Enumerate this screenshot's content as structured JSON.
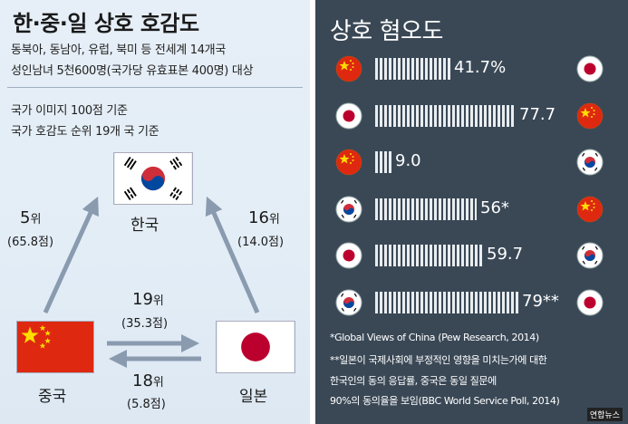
{
  "left": {
    "title": "한·중·일 상호 호감도",
    "desc_line1": "동북아, 동남아, 유럽, 북미 등 전세계 14개국",
    "desc_line2": "성인남녀 5천600명(국가당 유효표본 400명) 대상",
    "criteria_line1": "국가 이미지 100점 기준",
    "criteria_line2": "국가 호감도 순위 19개 국 기준",
    "countries": {
      "korea": "한국",
      "china": "중국",
      "japan": "일본"
    },
    "ranks": {
      "china_to_korea": {
        "rank": "5",
        "unit": "위",
        "score": "(65.8점)"
      },
      "japan_to_korea": {
        "rank": "16",
        "unit": "위",
        "score": "(14.0점)"
      },
      "korea_to_china_japan": {
        "rank": "19",
        "unit": "위",
        "score": "(35.3점)"
      },
      "japan_to_china": {
        "rank": "18",
        "unit": "위",
        "score": "(5.8점)"
      }
    }
  },
  "right": {
    "title": "상호 혐오도",
    "rows": [
      {
        "from": "china",
        "to": "japan",
        "value": 41.7,
        "label": "41.7%"
      },
      {
        "from": "japan",
        "to": "china",
        "value": 77.7,
        "label": "77.7"
      },
      {
        "from": "china",
        "to": "korea",
        "value": 9.0,
        "label": "9.0"
      },
      {
        "from": "korea",
        "to": "china",
        "value": 56,
        "label": "56*"
      },
      {
        "from": "japan",
        "to": "korea",
        "value": 59.7,
        "label": "59.7"
      },
      {
        "from": "korea",
        "to": "japan",
        "value": 79,
        "label": "79**"
      }
    ],
    "note1": "*Global Views of China (Pew Research, 2014)",
    "note2_line1": "**일본이 국제사회에 부정적인 영향을 미치는가에 대한",
    "note2_line2": "한국인의 동의 응답률, 중국은 동일 질문에",
    "note2_line3": "90%의 동의율을 보임(BBC World Service Poll, 2014)"
  },
  "credit": "연합뉴스",
  "colors": {
    "left_bg": "#e3edf6",
    "right_bg": "#3a4856",
    "arrow": "#8a9bb0",
    "china_red": "#de2910",
    "china_star": "#ffde00",
    "japan_red": "#bc002d",
    "korea_red": "#cd2e3a",
    "korea_blue": "#0047a0"
  },
  "icons": [
    "korea-flag-icon",
    "china-flag-icon",
    "japan-flag-icon"
  ]
}
